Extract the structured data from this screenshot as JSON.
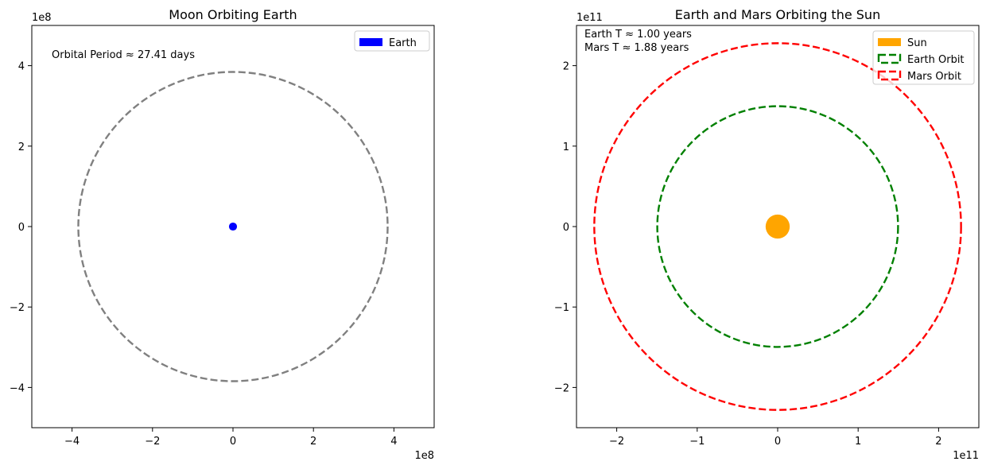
{
  "chart_data": [
    {
      "type": "scatter",
      "title": "Moon Orbiting Earth",
      "xlabel": "",
      "ylabel": "",
      "xlim": [
        -500000000,
        500000000
      ],
      "ylim": [
        -500000000,
        500000000
      ],
      "x_offset_label": "1e8",
      "y_offset_label": "1e8",
      "xticks": [
        -400000000,
        -200000000,
        0,
        200000000,
        400000000
      ],
      "xtick_labels": [
        "−4",
        "−2",
        "0",
        "2",
        "4"
      ],
      "yticks": [
        -400000000,
        -200000000,
        0,
        200000000,
        400000000
      ],
      "ytick_labels": [
        "−4",
        "−2",
        "0",
        "2",
        "4"
      ],
      "grid": false,
      "legend_position": "top-right",
      "bodies": [
        {
          "name": "Earth",
          "x": 0,
          "y": 0,
          "radius": 10000000,
          "color": "#0000ff",
          "in_legend": true
        }
      ],
      "orbits": [
        {
          "name": "",
          "radius": 384400000,
          "color": "#808080",
          "style": "dashed",
          "in_legend": false
        }
      ],
      "annotations": [
        "Orbital Period ≈ 27.41 days"
      ]
    },
    {
      "type": "scatter",
      "title": "Earth and Mars Orbiting the Sun",
      "xlabel": "",
      "ylabel": "",
      "xlim": [
        -250000000000,
        250000000000
      ],
      "ylim": [
        -250000000000,
        250000000000
      ],
      "x_offset_label": "1e11",
      "y_offset_label": "1e11",
      "xticks": [
        -200000000000,
        -100000000000,
        0,
        100000000000,
        200000000000
      ],
      "xtick_labels": [
        "−2",
        "−1",
        "0",
        "1",
        "2"
      ],
      "yticks": [
        -200000000000,
        -100000000000,
        0,
        100000000000,
        200000000000
      ],
      "ytick_labels": [
        "−2",
        "−1",
        "0",
        "1",
        "2"
      ],
      "grid": false,
      "legend_position": "top-right",
      "bodies": [
        {
          "name": "Sun",
          "x": 0,
          "y": 0,
          "radius": 15000000000,
          "color": "#ffa500",
          "in_legend": true
        }
      ],
      "orbits": [
        {
          "name": "Earth Orbit",
          "radius": 149600000000,
          "color": "#008000",
          "style": "dashed",
          "in_legend": true
        },
        {
          "name": "Mars Orbit",
          "radius": 227900000000,
          "color": "#ff0000",
          "style": "dashed",
          "in_legend": true
        }
      ],
      "annotations": [
        "Earth T ≈ 1.00 years",
        "Mars T ≈ 1.88 years"
      ]
    }
  ]
}
